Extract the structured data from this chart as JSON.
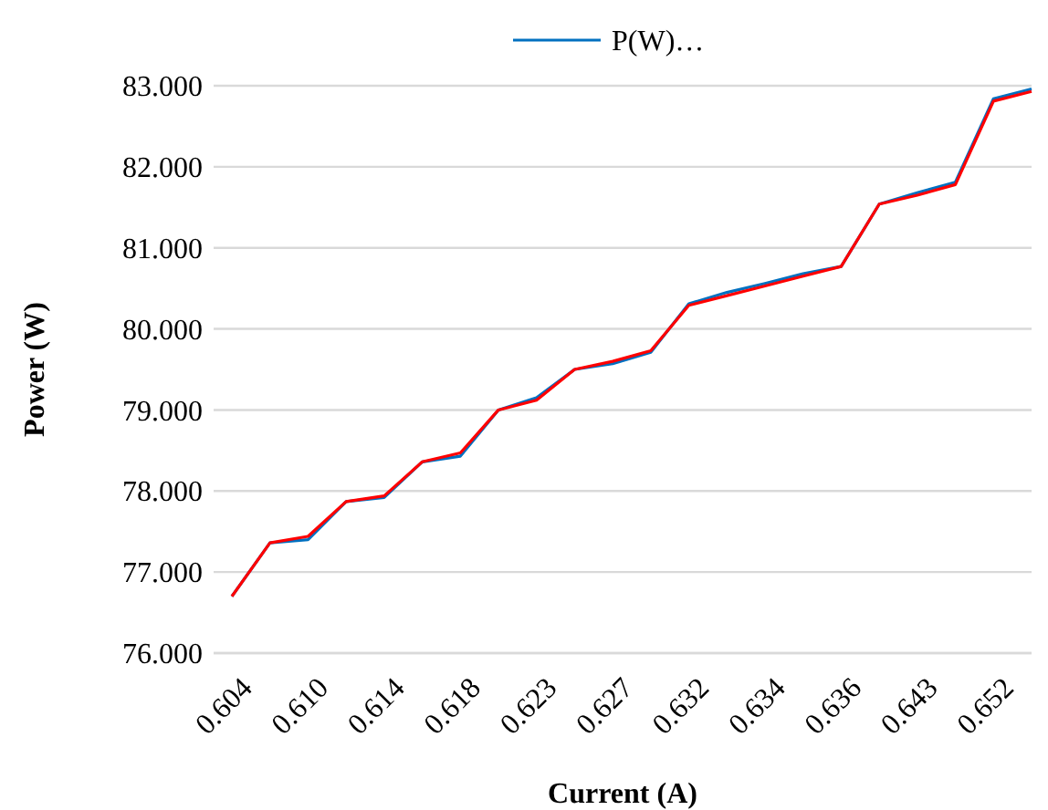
{
  "chart_data": {
    "type": "line",
    "xlabel": "Current (A)",
    "ylabel": "Power (W)",
    "categories": [
      "0.604",
      null,
      "0.610",
      null,
      "0.614",
      null,
      "0.618",
      null,
      "0.623",
      null,
      "0.627",
      null,
      "0.632",
      null,
      "0.634",
      null,
      "0.636",
      null,
      "0.643",
      null,
      "0.652",
      null
    ],
    "series": [
      {
        "name": "P(W)…",
        "color": "#0070c0",
        "values": [
          76.7,
          77.36,
          77.4,
          77.87,
          77.92,
          78.36,
          78.43,
          79.0,
          79.15,
          79.5,
          79.57,
          79.71,
          80.31,
          80.45,
          80.56,
          80.68,
          80.77,
          81.54,
          81.68,
          81.81,
          82.84,
          82.96
        ]
      },
      {
        "color": "#ff0000",
        "values": [
          76.7,
          77.36,
          77.44,
          77.87,
          77.94,
          78.36,
          78.47,
          79.0,
          79.12,
          79.5,
          79.6,
          79.73,
          80.29,
          80.41,
          80.53,
          80.65,
          80.77,
          81.54,
          81.65,
          81.78,
          82.81,
          82.93
        ]
      }
    ],
    "ylim": [
      76,
      83
    ],
    "yticks": [
      {
        "value": 76,
        "label": "76.000"
      },
      {
        "value": 77,
        "label": "77.000"
      },
      {
        "value": 78,
        "label": "78.000"
      },
      {
        "value": 79,
        "label": "79.000"
      },
      {
        "value": 80,
        "label": "80.000"
      },
      {
        "value": 81,
        "label": "81.000"
      },
      {
        "value": 82,
        "label": "82.000"
      },
      {
        "value": 83,
        "label": "83.000"
      }
    ],
    "grid": "y",
    "legend": "top",
    "marker": "none",
    "line_style": "solid"
  }
}
